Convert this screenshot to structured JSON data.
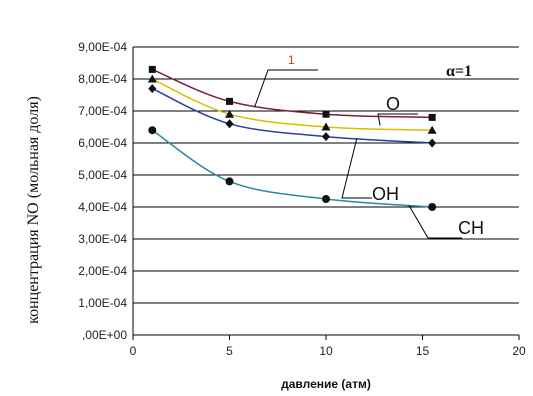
{
  "chart_data": {
    "type": "line",
    "xlabel": "давление (атм)",
    "ylabel": "концентрация NO (мольная доля)",
    "xlim": [
      0,
      20
    ],
    "ylim": [
      0,
      0.0009
    ],
    "x_ticks": [
      "0",
      "5",
      "10",
      "15",
      "20"
    ],
    "y_ticks": [
      ",00E+00",
      "1,00E-04",
      "2,00E-04",
      "3,00E-04",
      "4,00E-04",
      "5,00E-04",
      "6,00E-04",
      "7,00E-04",
      "8,00E-04",
      "9,00E-04"
    ],
    "grid": "horizontal",
    "annotation": "α=1",
    "series": [
      {
        "name": "1",
        "color": "#7b1f3a",
        "marker": "square",
        "x": [
          1,
          5,
          10,
          15.5
        ],
        "y": [
          0.00083,
          0.00073,
          0.00069,
          0.00068
        ]
      },
      {
        "name": "O",
        "color": "#d4c000",
        "marker": "triangle",
        "x": [
          1,
          5,
          10,
          15.5
        ],
        "y": [
          0.0008,
          0.00069,
          0.00065,
          0.00064
        ]
      },
      {
        "name": "OH",
        "color": "#2c3e9c",
        "marker": "diamond",
        "x": [
          1,
          5,
          10,
          15.5
        ],
        "y": [
          0.00077,
          0.00066,
          0.00062,
          0.0006
        ]
      },
      {
        "name": "CH",
        "color": "#2a8aa0",
        "marker": "circle",
        "x": [
          1,
          5,
          10,
          15.5
        ],
        "y": [
          0.00064,
          0.00048,
          0.000425,
          0.0004
        ]
      }
    ]
  }
}
